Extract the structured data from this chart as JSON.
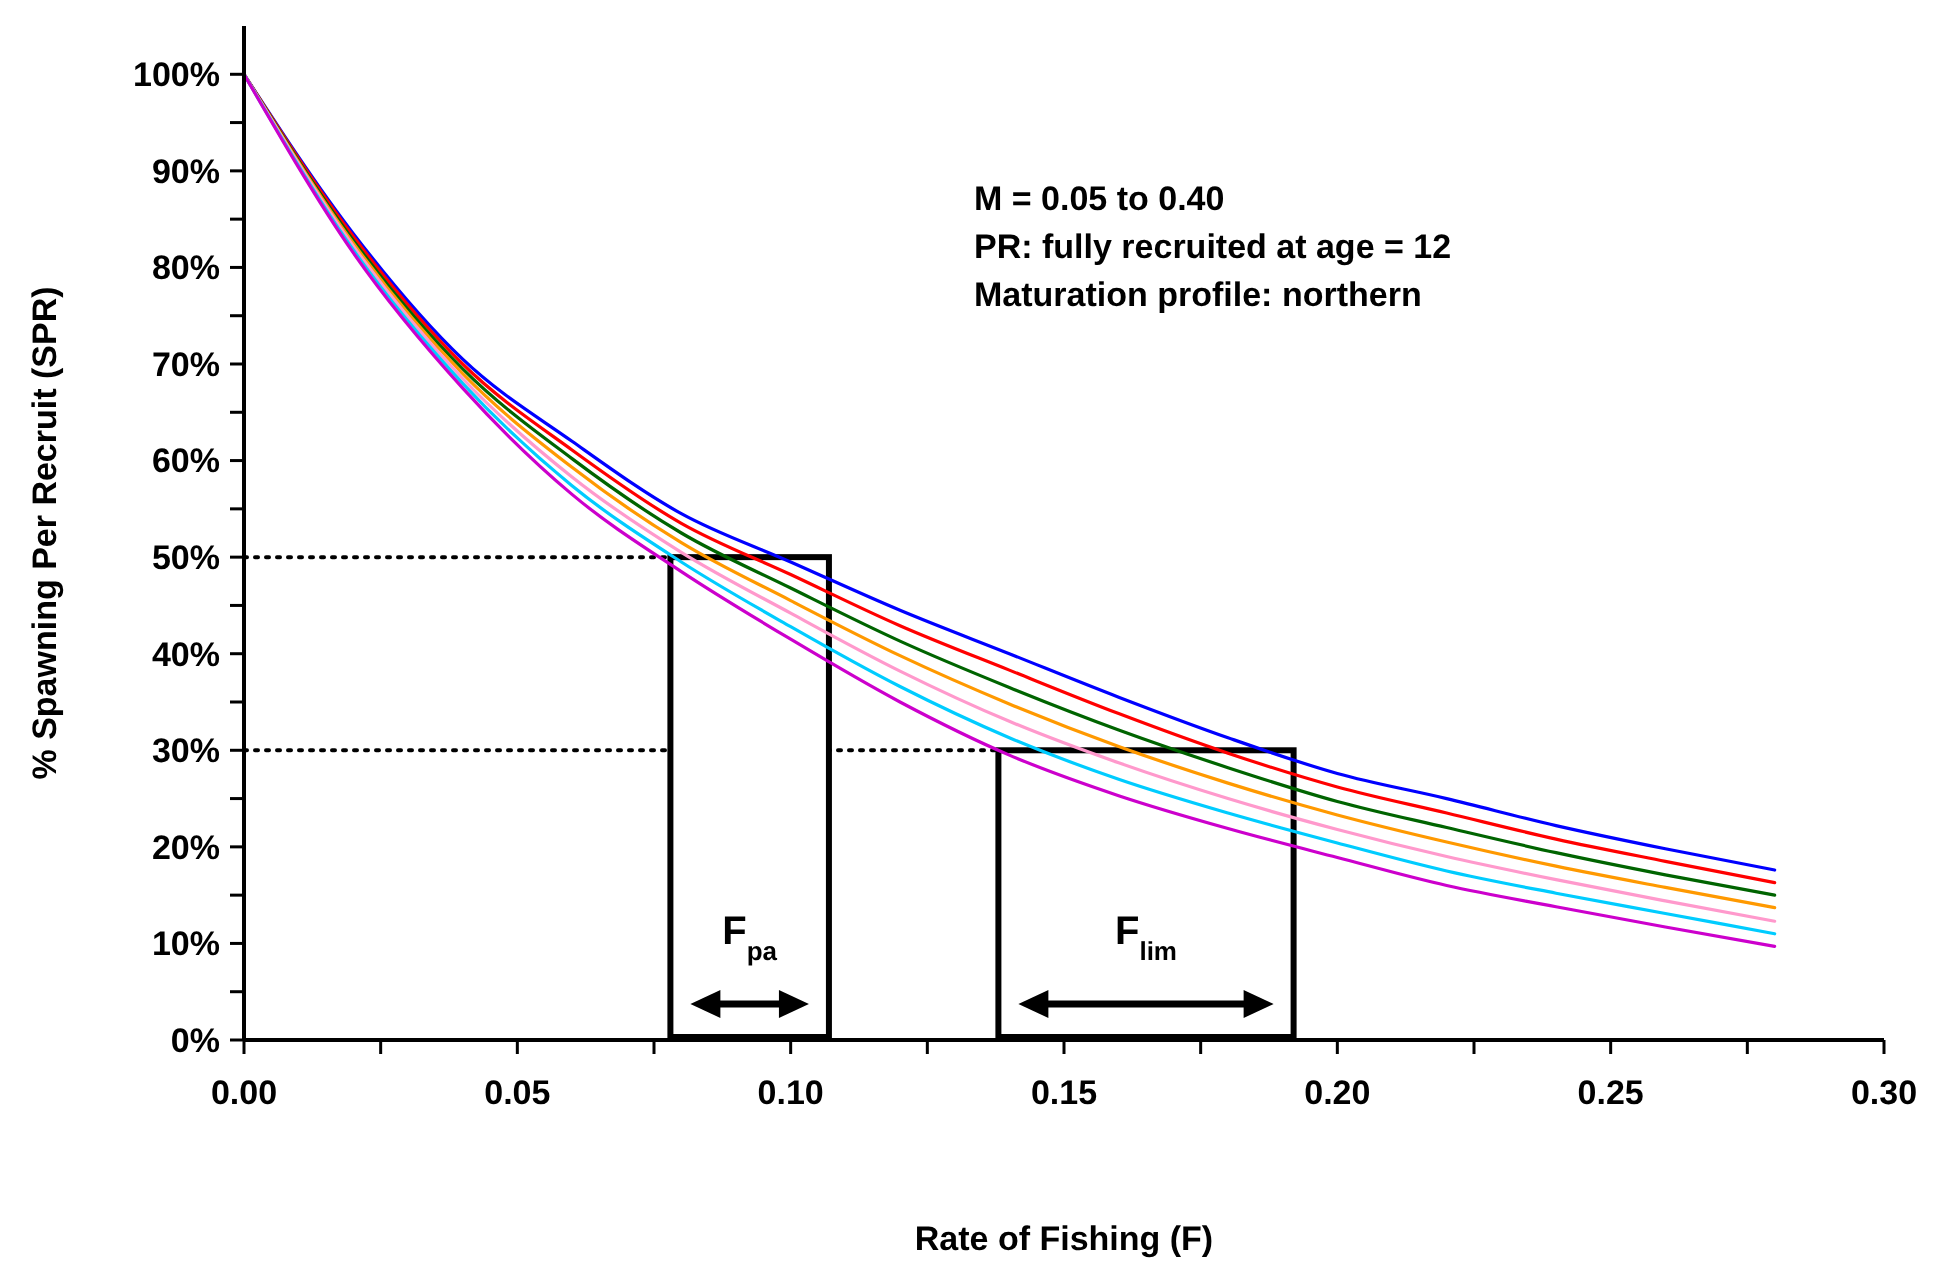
{
  "chart_data": {
    "type": "line",
    "xlabel": "Rate of Fishing (F)",
    "ylabel": "% Spawning Per Recruit (SPR)",
    "x": [
      0,
      0.02,
      0.04,
      0.06,
      0.08,
      0.1,
      0.12,
      0.14,
      0.16,
      0.18,
      0.2,
      0.22,
      0.24,
      0.26,
      0.28
    ],
    "series": [
      {
        "color": "#0000ff",
        "values": [
          100,
          83.5,
          70.5,
          62,
          54.5,
          49.5,
          44.5,
          40,
          35.5,
          31.3,
          27.6,
          25,
          22.2,
          19.8,
          17.6
        ]
      },
      {
        "color": "#ff0000",
        "values": [
          100,
          83.2,
          70,
          61.1,
          53.5,
          48.2,
          42.9,
          38.3,
          33.8,
          29.7,
          26.2,
          23.5,
          20.8,
          18.5,
          16.3
        ]
      },
      {
        "color": "#006400",
        "values": [
          100,
          82.8,
          69.5,
          60.2,
          52.5,
          46.8,
          41.3,
          36.5,
          32.1,
          28.2,
          24.7,
          22,
          19.4,
          17.1,
          15
        ]
      },
      {
        "color": "#ff9900",
        "values": [
          100,
          82.5,
          69,
          59.3,
          51.5,
          45.5,
          39.8,
          34.8,
          30.4,
          26.6,
          23.3,
          20.5,
          18,
          15.8,
          13.7
        ]
      },
      {
        "color": "#ff99cc",
        "values": [
          100,
          82.2,
          68.5,
          58.3,
          50.5,
          44.2,
          38.2,
          33,
          28.7,
          25,
          21.8,
          19,
          16.6,
          14.4,
          12.3
        ]
      },
      {
        "color": "#00ccff",
        "values": [
          100,
          81.8,
          68,
          57.4,
          49.5,
          42.8,
          36.6,
          31.3,
          27,
          23.5,
          20.4,
          17.5,
          15.2,
          13.1,
          11
        ]
      },
      {
        "color": "#cc00cc",
        "values": [
          100,
          81.5,
          67.5,
          56.5,
          48.5,
          41.5,
          35,
          29.5,
          25.3,
          21.9,
          18.9,
          16,
          13.8,
          11.7,
          9.7
        ]
      }
    ],
    "xlim": [
      0,
      0.3
    ],
    "xticks": [
      {
        "value": 0,
        "label": "0.00"
      },
      {
        "value": 0.025,
        "label": null
      },
      {
        "value": 0.05,
        "label": "0.05"
      },
      {
        "value": 0.075,
        "label": null
      },
      {
        "value": 0.1,
        "label": "0.10"
      },
      {
        "value": 0.125,
        "label": null
      },
      {
        "value": 0.15,
        "label": "0.15"
      },
      {
        "value": 0.175,
        "label": null
      },
      {
        "value": 0.2,
        "label": "0.20"
      },
      {
        "value": 0.225,
        "label": null
      },
      {
        "value": 0.25,
        "label": "0.25"
      },
      {
        "value": 0.275,
        "label": null
      },
      {
        "value": 0.3,
        "label": "0.30"
      }
    ],
    "ylim": [
      0,
      105
    ],
    "yticks": [
      {
        "value": 0,
        "label": "0%"
      },
      {
        "value": 5,
        "label": null
      },
      {
        "value": 10,
        "label": "10%"
      },
      {
        "value": 15,
        "label": null
      },
      {
        "value": 20,
        "label": "20%"
      },
      {
        "value": 25,
        "label": null
      },
      {
        "value": 30,
        "label": "30%"
      },
      {
        "value": 35,
        "label": null
      },
      {
        "value": 40,
        "label": "40%"
      },
      {
        "value": 45,
        "label": null
      },
      {
        "value": 50,
        "label": "50%"
      },
      {
        "value": 55,
        "label": null
      },
      {
        "value": 60,
        "label": "60%"
      },
      {
        "value": 65,
        "label": null
      },
      {
        "value": 70,
        "label": "70%"
      },
      {
        "value": 75,
        "label": null
      },
      {
        "value": 80,
        "label": "80%"
      },
      {
        "value": 85,
        "label": null
      },
      {
        "value": 90,
        "label": "90%"
      },
      {
        "value": 95,
        "label": null
      },
      {
        "value": 100,
        "label": "100%"
      }
    ],
    "ref_lines": [
      {
        "axis": "y",
        "value": 50,
        "line_style": "dotted",
        "color": "#000000"
      },
      {
        "axis": "y",
        "value": 30,
        "line_style": "dotted",
        "color": "#000000"
      }
    ],
    "bands": [
      {
        "axis": "x",
        "from": 0.078,
        "to": 0.107,
        "label": "F$_{pa}$",
        "color": "#000000"
      },
      {
        "axis": "x",
        "from": 0.138,
        "to": 0.192,
        "label": "F$_{lim}$",
        "color": "#000000"
      }
    ],
    "annotations": [
      "M = 0.05 to 0.40",
      "PR: fully recruited at age = 12",
      "Maturation profile: northern"
    ],
    "grid": false,
    "marker": "none",
    "line_style": "solid"
  }
}
